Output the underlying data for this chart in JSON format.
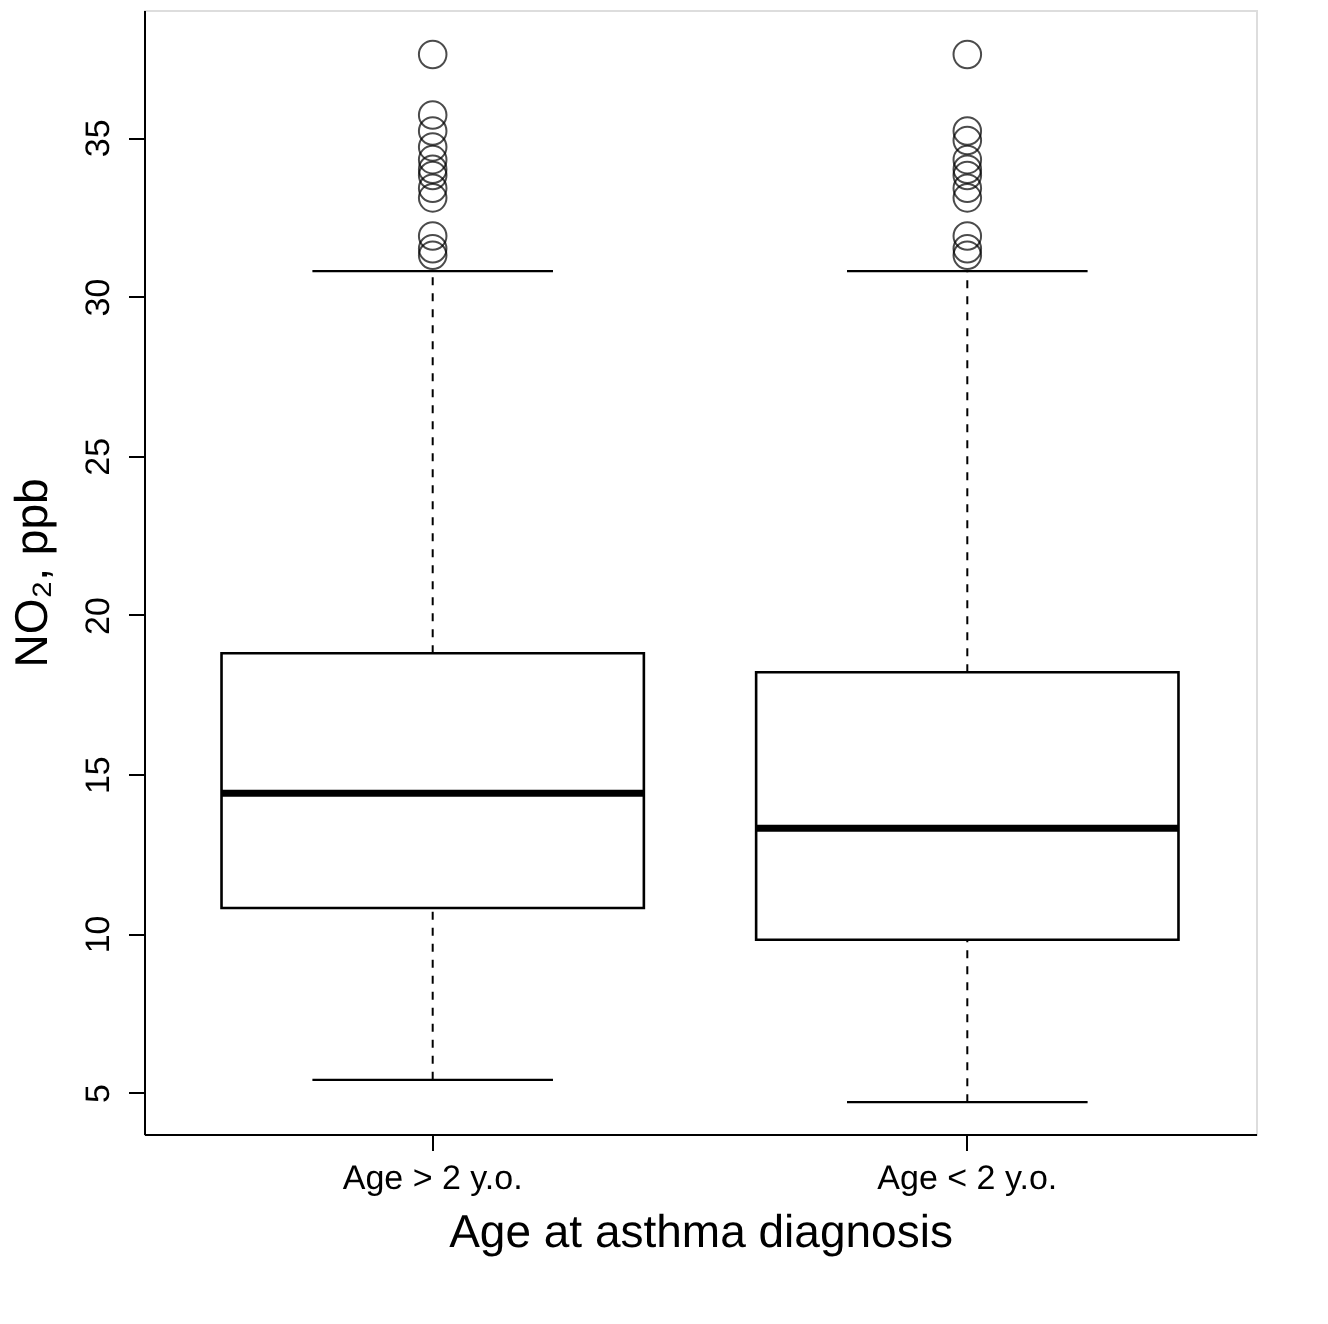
{
  "chart_data": {
    "type": "box",
    "categories": [
      "Age > 2 y.o.",
      "Age < 2 y.o."
    ],
    "boxes": [
      {
        "low": 5.4,
        "q1": 10.8,
        "median": 14.4,
        "q3": 18.8,
        "high": 30.8,
        "outliers": [
          37.6,
          35.7,
          35.2,
          34.7,
          34.3,
          34.0,
          33.8,
          33.4,
          33.1,
          31.9,
          31.5,
          31.3
        ]
      },
      {
        "low": 4.7,
        "q1": 9.8,
        "median": 13.3,
        "q3": 18.2,
        "high": 30.8,
        "outliers": [
          37.6,
          35.2,
          34.9,
          34.3,
          34.0,
          33.8,
          33.4,
          33.1,
          31.9,
          31.5,
          31.3
        ]
      }
    ],
    "xlabel": "Age at asthma diagnosis",
    "ylabel": "NO₂, ppb",
    "ylim": [
      3.7,
      39.0
    ],
    "yticks": [
      5,
      10,
      15,
      20,
      25,
      30,
      35
    ],
    "grid": false,
    "marker": "circle"
  }
}
